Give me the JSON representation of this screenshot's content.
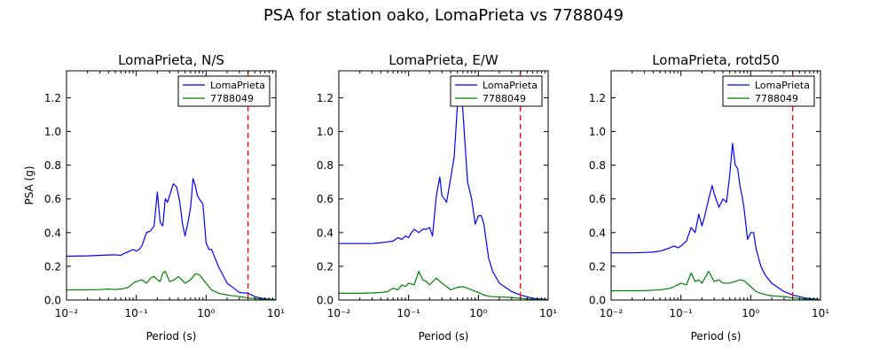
{
  "figure_title": "PSA for station oako, LomaPrieta vs 7788049",
  "colors": {
    "series_1": "#0000ff",
    "series_2": "#008000",
    "marker_line": "#ff0000"
  },
  "chart_data": [
    {
      "type": "line",
      "title": "LomaPrieta, N/S",
      "xlabel": "Period (s)",
      "ylabel": "PSA (g)",
      "xscale": "log",
      "xlim": [
        0.01,
        10
      ],
      "ylim": [
        0.0,
        1.36
      ],
      "xticks": [
        0.01,
        0.1,
        1,
        10
      ],
      "xtick_labels": [
        "10⁻²",
        "10⁻¹",
        "10⁰",
        "10¹"
      ],
      "yticks": [
        0.0,
        0.2,
        0.4,
        0.6,
        0.8,
        1.0,
        1.2
      ],
      "ytick_labels": [
        "0.0",
        "0.2",
        "0.4",
        "0.6",
        "0.8",
        "1.0",
        "1.2"
      ],
      "legend_position": "top-right",
      "marker_line": {
        "x": 4.0,
        "style": "dashed",
        "color": "#ff0000"
      },
      "series": [
        {
          "name": "LomaPrieta",
          "color": "#0000ff",
          "x": [
            0.01,
            0.02,
            0.03,
            0.04,
            0.05,
            0.06,
            0.07,
            0.08,
            0.09,
            0.1,
            0.11,
            0.12,
            0.14,
            0.16,
            0.18,
            0.2,
            0.22,
            0.24,
            0.25,
            0.26,
            0.28,
            0.3,
            0.34,
            0.38,
            0.42,
            0.46,
            0.5,
            0.55,
            0.6,
            0.65,
            0.7,
            0.75,
            0.8,
            0.9,
            1.0,
            1.1,
            1.2,
            1.5,
            2.0,
            2.5,
            3.0,
            4.0,
            5.0,
            6.0,
            8.0,
            10.0
          ],
          "y": [
            0.26,
            0.262,
            0.265,
            0.267,
            0.268,
            0.265,
            0.28,
            0.29,
            0.3,
            0.29,
            0.3,
            0.32,
            0.4,
            0.41,
            0.44,
            0.64,
            0.46,
            0.44,
            0.52,
            0.6,
            0.58,
            0.62,
            0.69,
            0.67,
            0.58,
            0.45,
            0.38,
            0.46,
            0.55,
            0.72,
            0.68,
            0.62,
            0.6,
            0.57,
            0.34,
            0.3,
            0.3,
            0.2,
            0.1,
            0.07,
            0.045,
            0.04,
            0.02,
            0.012,
            0.005,
            0.002
          ]
        },
        {
          "name": "7788049",
          "color": "#008000",
          "x": [
            0.01,
            0.02,
            0.03,
            0.04,
            0.05,
            0.06,
            0.07,
            0.08,
            0.09,
            0.1,
            0.12,
            0.14,
            0.16,
            0.18,
            0.2,
            0.22,
            0.24,
            0.26,
            0.3,
            0.35,
            0.4,
            0.5,
            0.6,
            0.7,
            0.8,
            1.0,
            1.2,
            1.5,
            2.0,
            3.0,
            4.0,
            6.0,
            10.0
          ],
          "y": [
            0.06,
            0.06,
            0.062,
            0.065,
            0.062,
            0.065,
            0.07,
            0.08,
            0.1,
            0.11,
            0.12,
            0.1,
            0.13,
            0.14,
            0.12,
            0.11,
            0.16,
            0.17,
            0.11,
            0.12,
            0.14,
            0.1,
            0.12,
            0.155,
            0.15,
            0.1,
            0.06,
            0.04,
            0.03,
            0.02,
            0.012,
            0.006,
            0.002
          ]
        }
      ]
    },
    {
      "type": "line",
      "title": "LomaPrieta, E/W",
      "xlabel": "Period (s)",
      "ylabel": "",
      "xscale": "log",
      "xlim": [
        0.01,
        10
      ],
      "ylim": [
        0.0,
        1.36
      ],
      "xticks": [
        0.01,
        0.1,
        1,
        10
      ],
      "xtick_labels": [
        "10⁻²",
        "10⁻¹",
        "10⁰",
        "10¹"
      ],
      "yticks": [
        0.0,
        0.2,
        0.4,
        0.6,
        0.8,
        1.0,
        1.2
      ],
      "ytick_labels": [
        "0.0",
        "0.2",
        "0.4",
        "0.6",
        "0.8",
        "1.0",
        "1.2"
      ],
      "legend_position": "top-right",
      "marker_line": {
        "x": 4.0,
        "style": "dashed",
        "color": "#ff0000"
      },
      "series": [
        {
          "name": "LomaPrieta",
          "color": "#0000ff",
          "x": [
            0.01,
            0.02,
            0.03,
            0.04,
            0.05,
            0.06,
            0.07,
            0.08,
            0.09,
            0.1,
            0.11,
            0.12,
            0.14,
            0.16,
            0.18,
            0.2,
            0.22,
            0.25,
            0.28,
            0.3,
            0.35,
            0.4,
            0.45,
            0.5,
            0.55,
            0.6,
            0.65,
            0.7,
            0.75,
            0.8,
            0.9,
            1.0,
            1.1,
            1.2,
            1.4,
            1.6,
            2.0,
            3.0,
            4.0,
            6.0,
            10.0
          ],
          "y": [
            0.335,
            0.335,
            0.335,
            0.34,
            0.345,
            0.35,
            0.37,
            0.36,
            0.38,
            0.37,
            0.4,
            0.42,
            0.4,
            0.42,
            0.42,
            0.43,
            0.38,
            0.62,
            0.73,
            0.62,
            0.58,
            0.72,
            0.85,
            1.15,
            1.32,
            1.12,
            0.9,
            0.7,
            0.65,
            0.6,
            0.45,
            0.5,
            0.5,
            0.45,
            0.25,
            0.17,
            0.1,
            0.05,
            0.03,
            0.01,
            0.002
          ]
        },
        {
          "name": "7788049",
          "color": "#008000",
          "x": [
            0.01,
            0.02,
            0.03,
            0.04,
            0.05,
            0.06,
            0.07,
            0.08,
            0.09,
            0.1,
            0.12,
            0.14,
            0.16,
            0.18,
            0.2,
            0.25,
            0.3,
            0.35,
            0.4,
            0.5,
            0.6,
            0.7,
            0.8,
            1.0,
            1.2,
            1.5,
            2.0,
            3.0,
            4.0,
            6.0,
            10.0
          ],
          "y": [
            0.04,
            0.04,
            0.042,
            0.045,
            0.05,
            0.07,
            0.06,
            0.09,
            0.08,
            0.1,
            0.09,
            0.17,
            0.12,
            0.11,
            0.09,
            0.13,
            0.1,
            0.08,
            0.06,
            0.075,
            0.08,
            0.07,
            0.06,
            0.045,
            0.03,
            0.02,
            0.018,
            0.015,
            0.01,
            0.005,
            0.002
          ]
        }
      ]
    },
    {
      "type": "line",
      "title": "LomaPrieta, rotd50",
      "xlabel": "Period (s)",
      "ylabel": "",
      "xscale": "log",
      "xlim": [
        0.01,
        10
      ],
      "ylim": [
        0.0,
        1.36
      ],
      "xticks": [
        0.01,
        0.1,
        1,
        10
      ],
      "xtick_labels": [
        "10⁻²",
        "10⁻¹",
        "10⁰",
        "10¹"
      ],
      "yticks": [
        0.0,
        0.2,
        0.4,
        0.6,
        0.8,
        1.0,
        1.2
      ],
      "ytick_labels": [
        "0.0",
        "0.2",
        "0.4",
        "0.6",
        "0.8",
        "1.0",
        "1.2"
      ],
      "legend_position": "top-right",
      "marker_line": {
        "x": 4.0,
        "style": "dashed",
        "color": "#ff0000"
      },
      "series": [
        {
          "name": "LomaPrieta",
          "color": "#0000ff",
          "x": [
            0.01,
            0.02,
            0.03,
            0.04,
            0.05,
            0.06,
            0.07,
            0.08,
            0.09,
            0.1,
            0.12,
            0.14,
            0.16,
            0.18,
            0.2,
            0.22,
            0.25,
            0.28,
            0.3,
            0.35,
            0.4,
            0.45,
            0.5,
            0.55,
            0.6,
            0.65,
            0.7,
            0.75,
            0.8,
            0.9,
            1.0,
            1.1,
            1.2,
            1.4,
            1.6,
            2.0,
            3.0,
            4.0,
            6.0,
            10.0
          ],
          "y": [
            0.28,
            0.28,
            0.282,
            0.285,
            0.29,
            0.3,
            0.31,
            0.32,
            0.31,
            0.32,
            0.35,
            0.43,
            0.4,
            0.51,
            0.44,
            0.5,
            0.6,
            0.68,
            0.63,
            0.55,
            0.6,
            0.58,
            0.74,
            0.93,
            0.8,
            0.78,
            0.68,
            0.62,
            0.55,
            0.36,
            0.4,
            0.4,
            0.3,
            0.2,
            0.15,
            0.1,
            0.05,
            0.03,
            0.012,
            0.002
          ]
        },
        {
          "name": "7788049",
          "color": "#008000",
          "x": [
            0.01,
            0.02,
            0.03,
            0.04,
            0.05,
            0.06,
            0.07,
            0.08,
            0.09,
            0.1,
            0.12,
            0.14,
            0.16,
            0.18,
            0.2,
            0.25,
            0.3,
            0.35,
            0.4,
            0.5,
            0.6,
            0.7,
            0.8,
            1.0,
            1.2,
            1.5,
            2.0,
            3.0,
            4.0,
            6.0,
            10.0
          ],
          "y": [
            0.055,
            0.055,
            0.056,
            0.058,
            0.06,
            0.065,
            0.07,
            0.08,
            0.09,
            0.1,
            0.09,
            0.16,
            0.11,
            0.12,
            0.1,
            0.17,
            0.11,
            0.12,
            0.1,
            0.1,
            0.11,
            0.12,
            0.115,
            0.08,
            0.05,
            0.035,
            0.025,
            0.02,
            0.012,
            0.006,
            0.002
          ]
        }
      ]
    }
  ]
}
